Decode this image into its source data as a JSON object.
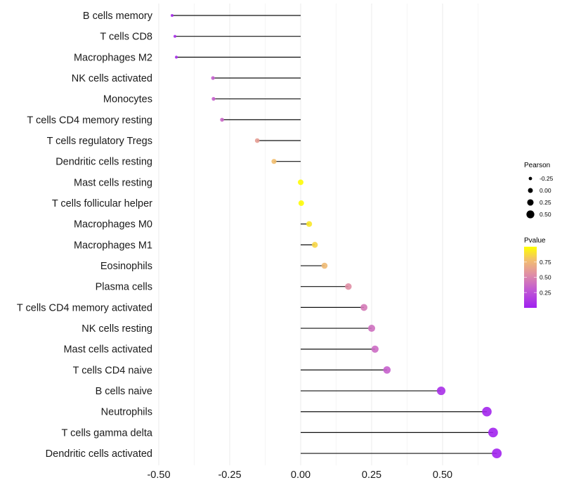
{
  "chart_data": {
    "type": "lollipop",
    "xlabel": "",
    "ylabel": "",
    "xlim": [
      -0.5,
      0.72
    ],
    "xticks": [
      -0.5,
      -0.25,
      0.0,
      0.25,
      0.5
    ],
    "xtick_labels": [
      "-0.50",
      "-0.25",
      "0.00",
      "0.25",
      "0.50"
    ],
    "grid": true,
    "categories": [
      "B cells memory",
      "T cells CD8",
      "Macrophages M2",
      "NK cells activated",
      "Monocytes",
      "T cells CD4 memory resting",
      "T cells regulatory  Tregs",
      "Dendritic cells resting",
      "Mast cells resting",
      "T cells follicular helper",
      "Macrophages M0",
      "Macrophages M1",
      "Eosinophils",
      "Plasma cells",
      "T cells CD4 memory activated",
      "NK cells resting",
      "Mast cells activated",
      "T cells CD4 naive",
      "B cells naive",
      "Neutrophils",
      "T cells gamma delta",
      "Dendritic cells activated"
    ],
    "pearson": [
      -0.453,
      -0.443,
      -0.438,
      -0.309,
      -0.307,
      -0.277,
      -0.153,
      -0.094,
      0.0,
      0.002,
      0.03,
      0.05,
      0.084,
      0.168,
      0.223,
      0.25,
      0.262,
      0.304,
      0.495,
      0.656,
      0.678,
      0.691
    ],
    "pvalue": [
      0.05,
      0.06,
      0.06,
      0.32,
      0.33,
      0.36,
      0.62,
      0.78,
      0.99,
      0.99,
      0.92,
      0.86,
      0.76,
      0.55,
      0.45,
      0.4,
      0.38,
      0.33,
      0.08,
      0.03,
      0.02,
      0.02
    ],
    "legend": {
      "size_title": "Pearson",
      "size_labels": [
        "-0.25",
        "0.00",
        "0.25",
        "0.50"
      ],
      "size_values": [
        -0.25,
        0.0,
        0.25,
        0.5
      ],
      "color_title": "Pvalue",
      "color_labels": [
        "0.75",
        "0.50",
        "0.25"
      ],
      "color_values": [
        0.75,
        0.5,
        0.25
      ],
      "color_low": "#A020F0",
      "color_high": "#FFFF00",
      "placement": "right"
    }
  }
}
